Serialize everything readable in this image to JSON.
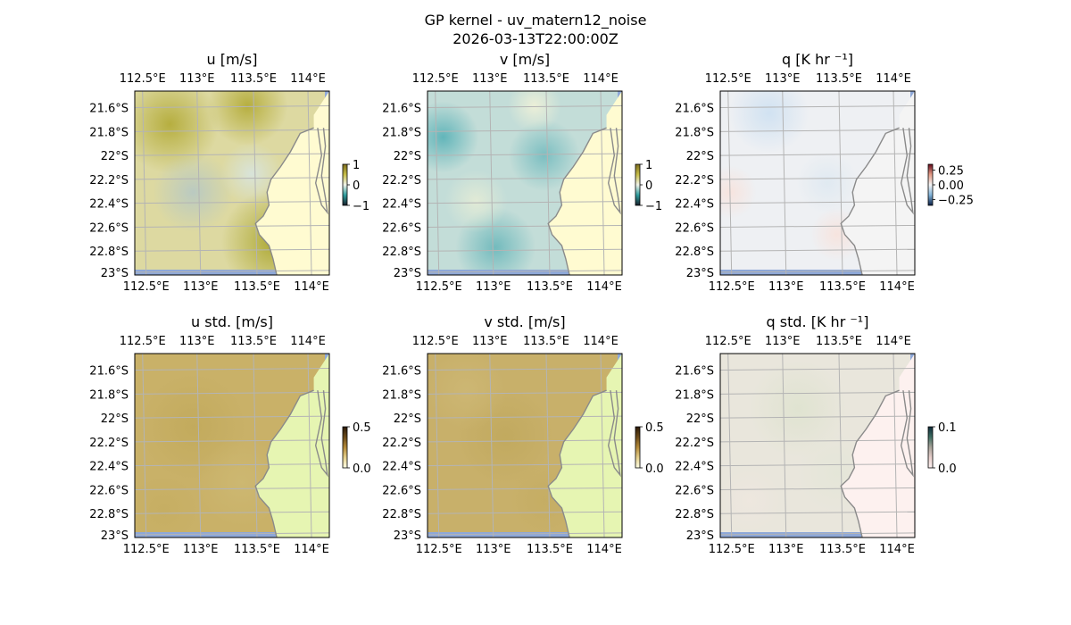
{
  "figure": {
    "title": "GP kernel - uv_matern12_noise",
    "subtitle": "2026-03-13T22:00:00Z"
  },
  "colors": {
    "ocean": "#8ea8d8",
    "coastline": "#8a8a8a",
    "gridlines": "#b4b4b4",
    "land_fill_mean_uv": "#fffbd1",
    "land_fill_std_uv": "#e6f5b2"
  },
  "chart_data": [
    {
      "type": "heatmap",
      "title": "u [m/s]",
      "field": "u",
      "colormap": "tarn",
      "x_ticks": [
        "112.5°E",
        "113°E",
        "113.5°E",
        "114°E"
      ],
      "y_ticks": [
        "21.6°S",
        "21.8°S",
        "22°S",
        "22.2°S",
        "22.4°S",
        "22.6°S",
        "22.8°S",
        "23°S"
      ],
      "xlim": [
        112.45,
        114.2
      ],
      "ylim": [
        -23.0,
        -21.45
      ],
      "colorbar": {
        "ticks": [
          "1",
          "0",
          "−1"
        ],
        "range": [
          -1,
          1
        ]
      },
      "gridlines": true,
      "land_value": "uniform pale yellow",
      "field_character": "smooth noisy field, mostly positive (yellow/olive) with a weak negative patch centre-west"
    },
    {
      "type": "heatmap",
      "title": "v [m/s]",
      "field": "v",
      "colormap": "tarn",
      "x_ticks": [
        "112.5°E",
        "113°E",
        "113.5°E",
        "114°E"
      ],
      "y_ticks": [
        "21.6°S",
        "21.8°S",
        "22°S",
        "22.2°S",
        "22.4°S",
        "22.6°S",
        "22.8°S",
        "23°S"
      ],
      "xlim": [
        112.45,
        114.2
      ],
      "ylim": [
        -23.0,
        -21.45
      ],
      "colorbar": {
        "ticks": [
          "1",
          "0",
          "−1"
        ],
        "range": [
          -1,
          1
        ]
      },
      "gridlines": true,
      "land_value": "uniform pale yellow",
      "field_character": "mostly negative (teal) over the ocean, strongest along the western edge"
    },
    {
      "type": "heatmap",
      "title": "q [K hr ⁻¹]",
      "field": "q",
      "colormap": "diverging red-blue",
      "x_ticks": [
        "112.5°E",
        "113°E",
        "113.5°E",
        "114°E"
      ],
      "y_ticks": [
        "21.6°S",
        "21.8°S",
        "22°S",
        "22.2°S",
        "22.4°S",
        "22.6°S",
        "22.8°S",
        "23°S"
      ],
      "xlim": [
        112.45,
        114.2
      ],
      "ylim": [
        -23.0,
        -21.45
      ],
      "colorbar": {
        "ticks": [
          "0.25",
          "0.00",
          "−0.25"
        ],
        "range": [
          -0.35,
          0.35
        ]
      },
      "gridlines": true,
      "land_value": "uniform light grey",
      "field_character": "near zero everywhere; faint blue patch north, faint pink patches west and south-east"
    },
    {
      "type": "heatmap",
      "title": "u std. [m/s]",
      "field": "u_std",
      "colormap": "tarn",
      "x_ticks": [
        "112.5°E",
        "113°E",
        "113.5°E",
        "114°E"
      ],
      "y_ticks": [
        "21.6°S",
        "21.8°S",
        "22°S",
        "22.2°S",
        "22.4°S",
        "22.6°S",
        "22.8°S",
        "23°S"
      ],
      "xlim": [
        112.45,
        114.2
      ],
      "ylim": [
        -23.0,
        -21.45
      ],
      "colorbar": {
        "ticks": [
          "0.5",
          "0.0"
        ],
        "range": [
          0,
          0.5
        ]
      },
      "gridlines": true,
      "land_value": "uniform light green",
      "field_character": "fairly uniform tan/olive over ocean"
    },
    {
      "type": "heatmap",
      "title": "v std. [m/s]",
      "field": "v_std",
      "colormap": "tarn",
      "x_ticks": [
        "112.5°E",
        "113°E",
        "113.5°E",
        "114°E"
      ],
      "y_ticks": [
        "21.6°S",
        "21.8°S",
        "22°S",
        "22.2°S",
        "22.4°S",
        "22.6°S",
        "22.8°S",
        "23°S"
      ],
      "xlim": [
        112.45,
        114.2
      ],
      "ylim": [
        -23.0,
        -21.45
      ],
      "colorbar": {
        "ticks": [
          "0.5",
          "0.0"
        ],
        "range": [
          0,
          0.5
        ]
      },
      "gridlines": true,
      "land_value": "uniform light green",
      "field_character": "fairly uniform tan/olive over ocean"
    },
    {
      "type": "heatmap",
      "title": "q std. [K hr ⁻¹]",
      "field": "q_std",
      "colormap": "curl-like",
      "x_ticks": [
        "112.5°E",
        "113°E",
        "113.5°E",
        "114°E"
      ],
      "y_ticks": [
        "21.6°S",
        "21.8°S",
        "22°S",
        "22.2°S",
        "22.4°S",
        "22.6°S",
        "22.8°S",
        "23°S"
      ],
      "xlim": [
        112.45,
        114.2
      ],
      "ylim": [
        -23.0,
        -21.45
      ],
      "colorbar": {
        "ticks": [
          "0.1",
          "0.0"
        ],
        "range": [
          0,
          0.1
        ]
      },
      "gridlines": true,
      "land_value": "uniform very light pink",
      "field_character": "very pale grey-green over ocean"
    }
  ]
}
